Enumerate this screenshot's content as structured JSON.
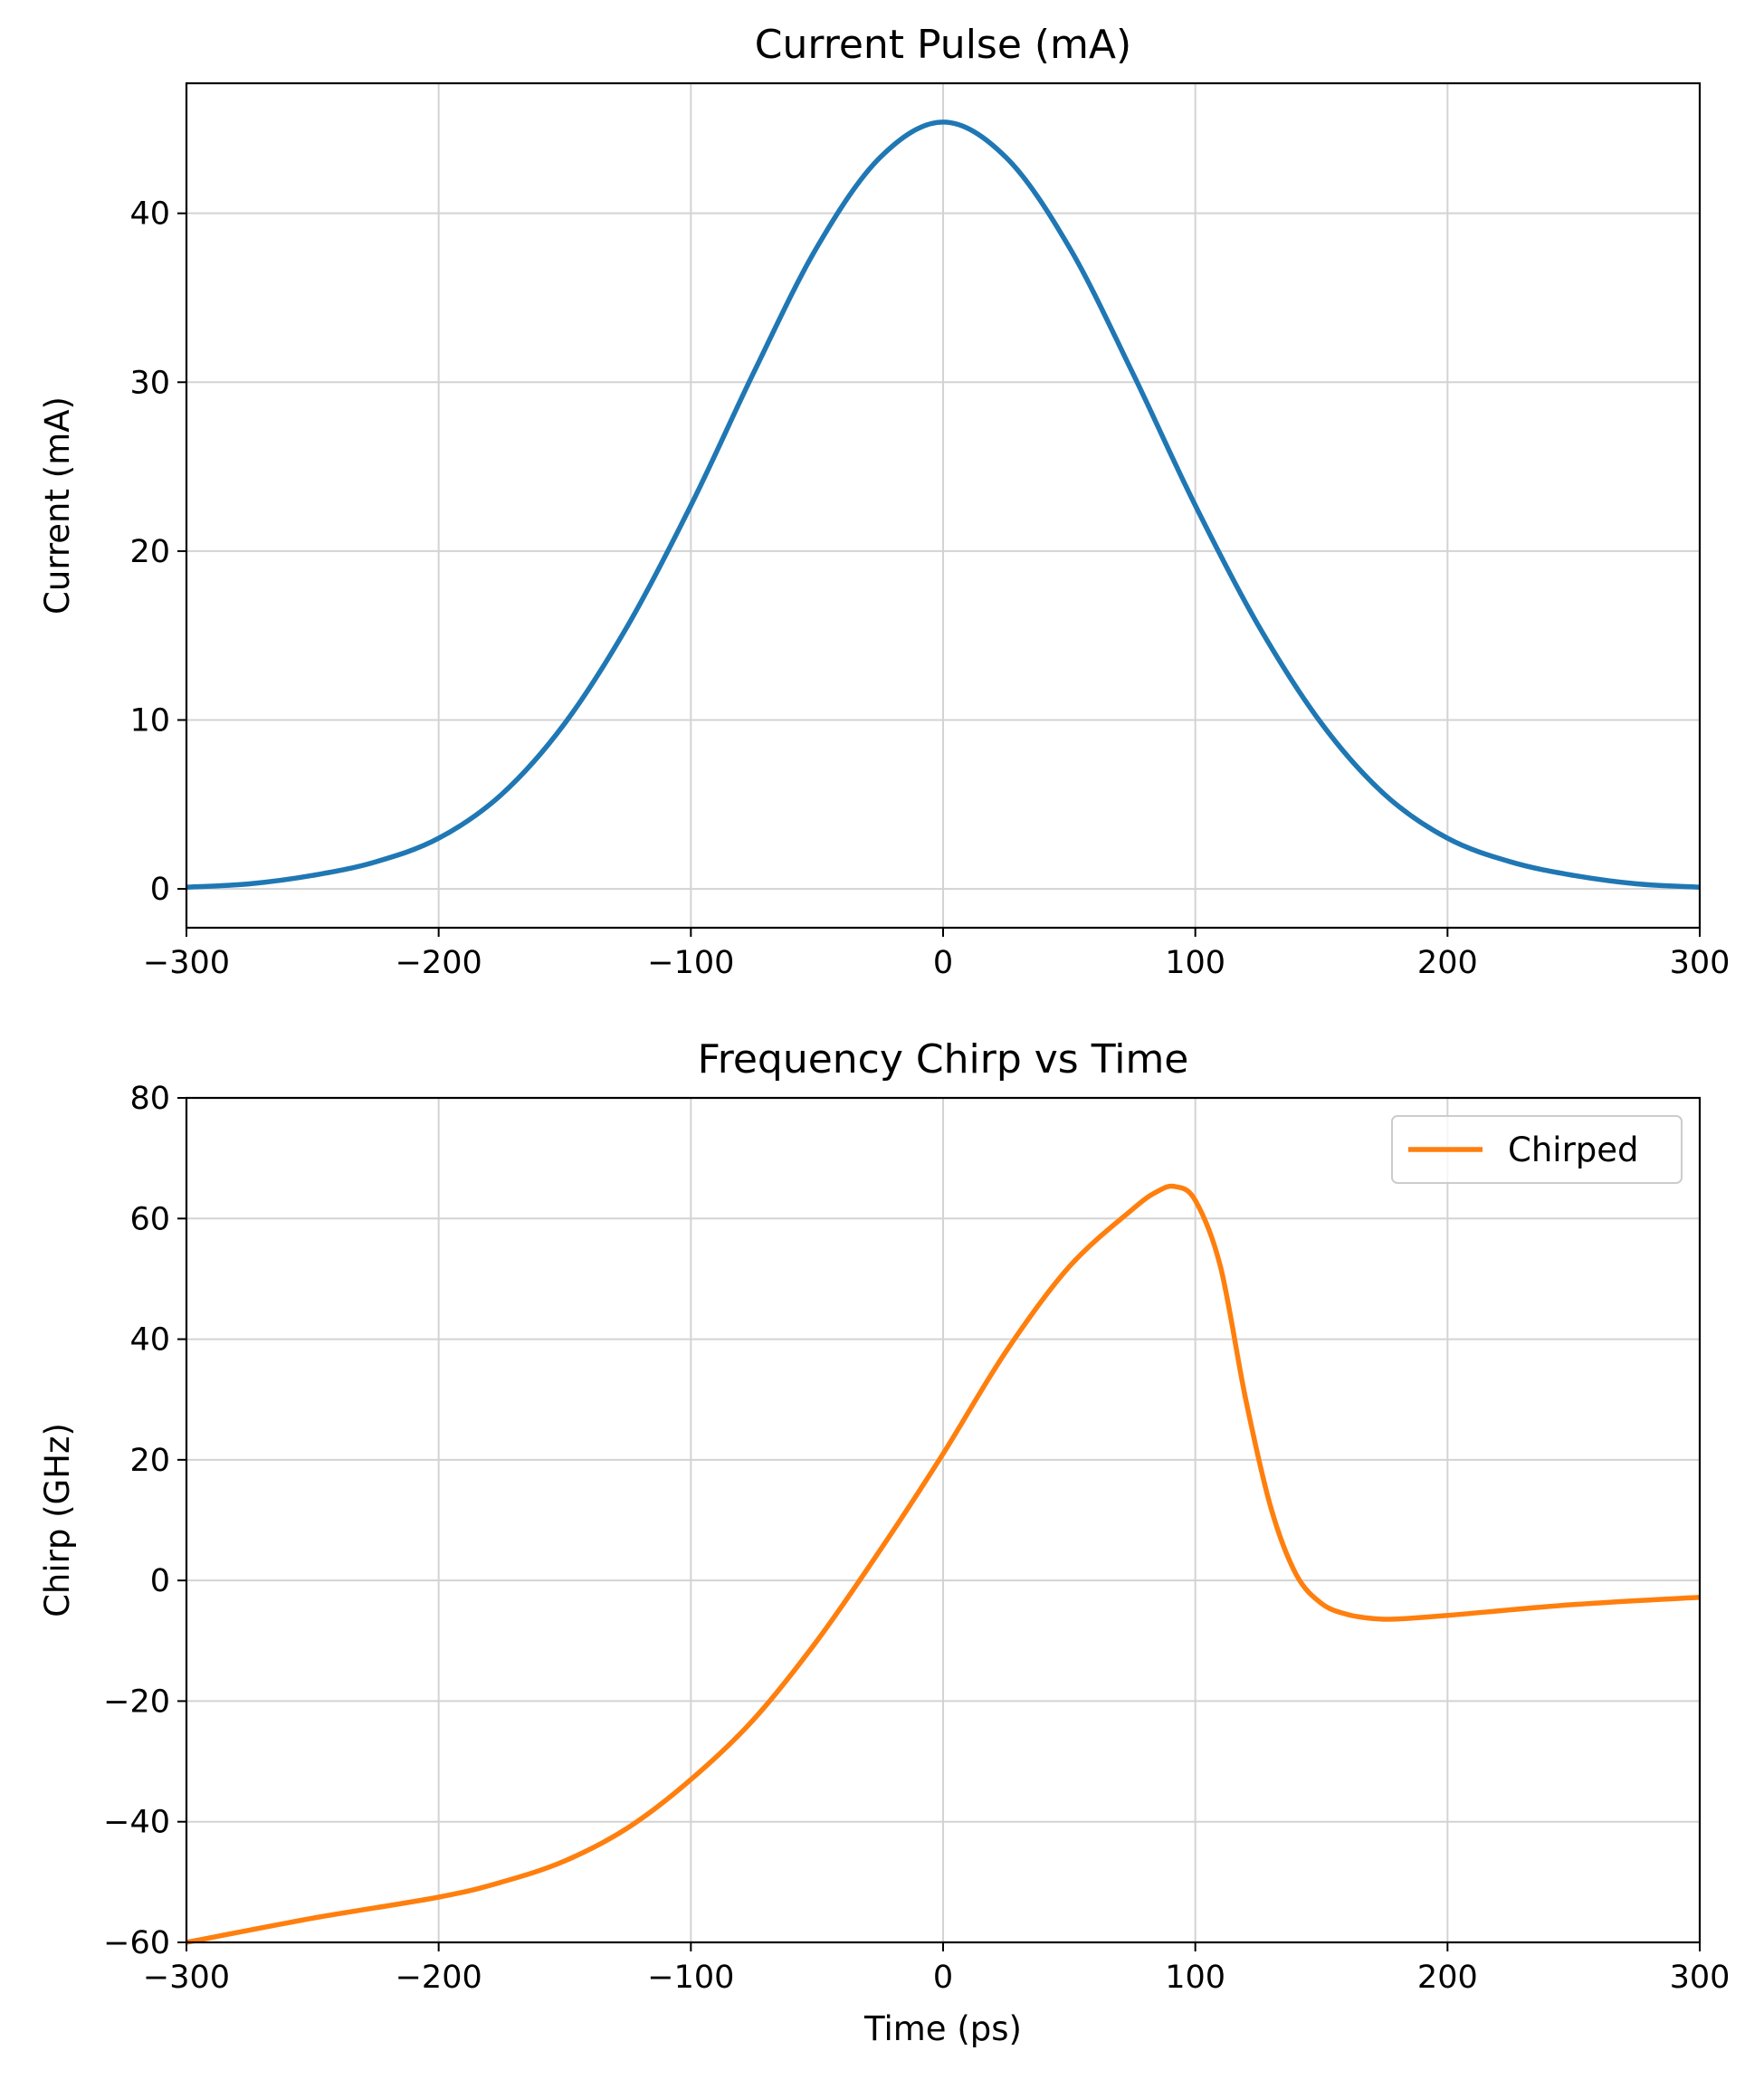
{
  "chart_data": [
    {
      "type": "line",
      "title": "Current Pulse (mA)",
      "xlabel": "",
      "ylabel": "Current (mA)",
      "xlim": [
        -300,
        300
      ],
      "ylim": [
        -2.3,
        47.7
      ],
      "xticks": [
        -300,
        -200,
        -100,
        0,
        100,
        200,
        300
      ],
      "xtick_labels": [
        "−300",
        "−200",
        "−100",
        "0",
        "100",
        "200",
        "300"
      ],
      "yticks": [
        0,
        10,
        20,
        30,
        40
      ],
      "ytick_labels": [
        "0",
        "10",
        "20",
        "30",
        "40"
      ],
      "grid": true,
      "legend": null,
      "series": [
        {
          "color": "#1f77b4",
          "x": [
            -300,
            -275,
            -250,
            -225,
            -200,
            -175,
            -150,
            -125,
            -100,
            -75,
            -50,
            -25,
            0,
            25,
            50,
            75,
            100,
            125,
            150,
            175,
            200,
            225,
            250,
            275,
            300
          ],
          "y": [
            0.1,
            0.3,
            0.8,
            1.6,
            3.0,
            5.6,
            9.8,
            15.6,
            22.7,
            30.6,
            38.0,
            43.3,
            45.4,
            43.3,
            38.0,
            30.6,
            22.7,
            15.6,
            9.8,
            5.6,
            3.0,
            1.6,
            0.8,
            0.3,
            0.1
          ]
        }
      ]
    },
    {
      "type": "line",
      "title": "Frequency Chirp vs Time",
      "xlabel": "Time (ps)",
      "ylabel": "Chirp (GHz)",
      "xlim": [
        -300,
        300
      ],
      "ylim": [
        -60,
        80
      ],
      "xticks": [
        -300,
        -200,
        -100,
        0,
        100,
        200,
        300
      ],
      "xtick_labels": [
        "−300",
        "−200",
        "−100",
        "0",
        "100",
        "200",
        "300"
      ],
      "yticks": [
        -60,
        -40,
        -20,
        0,
        20,
        40,
        60,
        80
      ],
      "ytick_labels": [
        "−60",
        "−40",
        "−20",
        "0",
        "20",
        "40",
        "60",
        "80"
      ],
      "grid": true,
      "legend": "top-right",
      "series": [
        {
          "name": "Chirped",
          "color": "#ff7f0e",
          "x": [
            -300,
            -250,
            -200,
            -175,
            -150,
            -125,
            -100,
            -75,
            -50,
            -25,
            0,
            25,
            50,
            75,
            85,
            92,
            100,
            110,
            120,
            130,
            140,
            150,
            160,
            170,
            180,
            200,
            250,
            300
          ],
          "y": [
            -60,
            -56,
            -52.5,
            -50,
            -46.5,
            -41,
            -33,
            -23,
            -10,
            5,
            21,
            38,
            52,
            61.5,
            64.5,
            65.3,
            63,
            52,
            30,
            12,
            1,
            -3.8,
            -5.6,
            -6.3,
            -6.4,
            -5.8,
            -4,
            -2.8
          ]
        }
      ]
    }
  ]
}
